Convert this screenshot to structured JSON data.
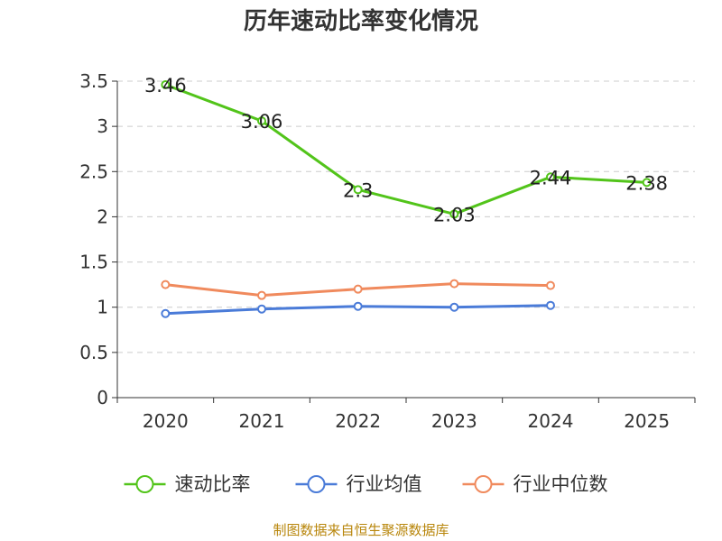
{
  "chart_data": {
    "type": "line",
    "title": "历年速动比率变化情况",
    "categories": [
      "2020",
      "2021",
      "2022",
      "2023",
      "2024",
      "2025"
    ],
    "ylim": [
      0,
      3.5
    ],
    "yticks": [
      "0",
      "0.5",
      "1",
      "1.5",
      "2",
      "2.5",
      "3",
      "3.5"
    ],
    "grid": true,
    "legend_position": "bottom",
    "series": [
      {
        "name": "速动比率",
        "color": "#52c41a",
        "values": [
          3.46,
          3.06,
          2.3,
          2.03,
          2.44,
          2.38
        ],
        "labels": [
          "3.46",
          "3.06",
          "2.3",
          "2.03",
          "2.44",
          "2.38"
        ]
      },
      {
        "name": "行业均值",
        "color": "#4a7bd8",
        "values": [
          0.93,
          0.98,
          1.01,
          1.0,
          1.02,
          null
        ]
      },
      {
        "name": "行业中位数",
        "color": "#f08a5d",
        "values": [
          1.25,
          1.13,
          1.2,
          1.26,
          1.24,
          null
        ]
      }
    ]
  },
  "footer": {
    "source": "制图数据来自恒生聚源数据库"
  }
}
